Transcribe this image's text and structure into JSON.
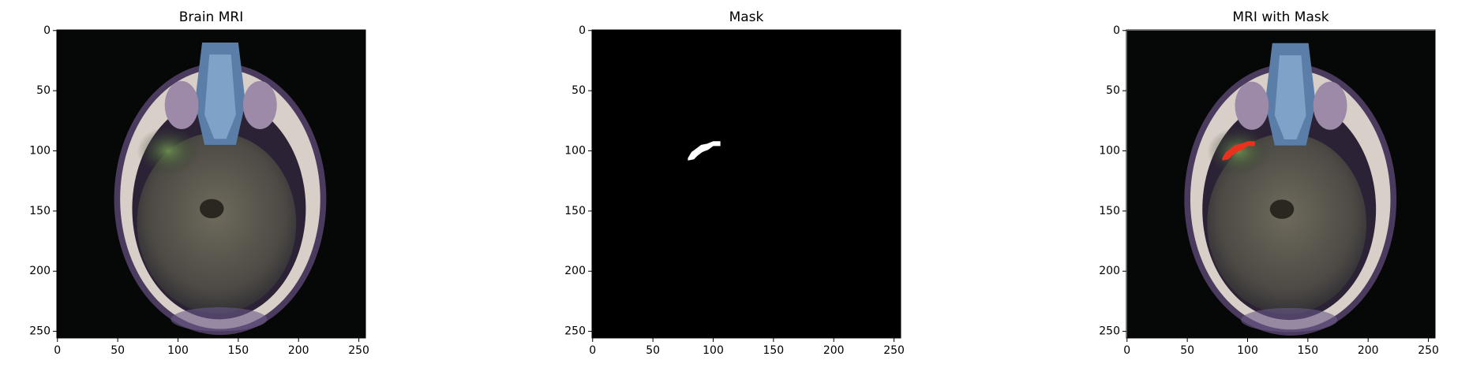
{
  "chart_data": [
    {
      "type": "image",
      "title": "Brain MRI",
      "xlim": [
        -0.5,
        255.5
      ],
      "ylim": [
        255.5,
        -0.5
      ],
      "xticks": [
        0,
        50,
        100,
        150,
        200,
        250
      ],
      "yticks": [
        0,
        50,
        100,
        150,
        200,
        250
      ]
    },
    {
      "type": "image",
      "title": "Mask",
      "xlim": [
        -0.5,
        255.5
      ],
      "ylim": [
        255.5,
        -0.5
      ],
      "xticks": [
        0,
        50,
        100,
        150,
        200,
        250
      ],
      "yticks": [
        0,
        50,
        100,
        150,
        200,
        250
      ]
    },
    {
      "type": "image",
      "title": "MRI with Mask",
      "xlim": [
        -0.5,
        255.5
      ],
      "ylim": [
        255.5,
        -0.5
      ],
      "xticks": [
        0,
        50,
        100,
        150,
        200,
        250
      ],
      "yticks": [
        0,
        50,
        100,
        150,
        200,
        250
      ]
    }
  ]
}
